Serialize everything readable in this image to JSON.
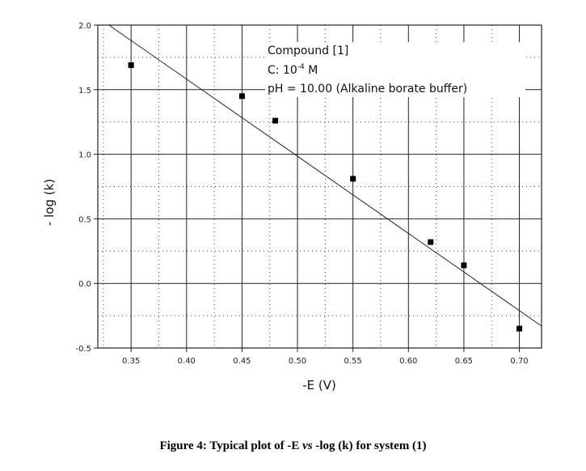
{
  "chart_data": {
    "type": "scatter",
    "xlabel": "-E (V)",
    "ylabel": "- log (k)",
    "xlim": [
      0.32,
      0.72
    ],
    "ylim": [
      -0.5,
      2.0
    ],
    "x_ticks": [
      "0.35",
      "0.40",
      "0.45",
      "0.50",
      "0.55",
      "0.60",
      "0.65",
      "0.70"
    ],
    "y_ticks": [
      "-0.5",
      "0.0",
      "0.5",
      "1.0",
      "1.5",
      "2.0"
    ],
    "grid": true,
    "points": [
      {
        "x": 0.35,
        "y": 1.69
      },
      {
        "x": 0.45,
        "y": 1.45
      },
      {
        "x": 0.48,
        "y": 1.26
      },
      {
        "x": 0.55,
        "y": 0.81
      },
      {
        "x": 0.62,
        "y": 0.32
      },
      {
        "x": 0.65,
        "y": 0.14
      },
      {
        "x": 0.7,
        "y": -0.35
      }
    ],
    "fit_line": {
      "x": [
        0.33,
        0.72
      ],
      "y": [
        2.0,
        -0.33
      ]
    },
    "annotations": {
      "line1": "Compound [1]",
      "line2_prefix": "C: 10",
      "line2_sup": "-4",
      "line2_suffix": " M",
      "line3": "pH = 10.00 (Alkaline borate buffer)"
    }
  },
  "caption": {
    "prefix": "Figure 4: Typical plot of -E ",
    "vs": "vs",
    "suffix": " -log (k) for system (1)"
  }
}
